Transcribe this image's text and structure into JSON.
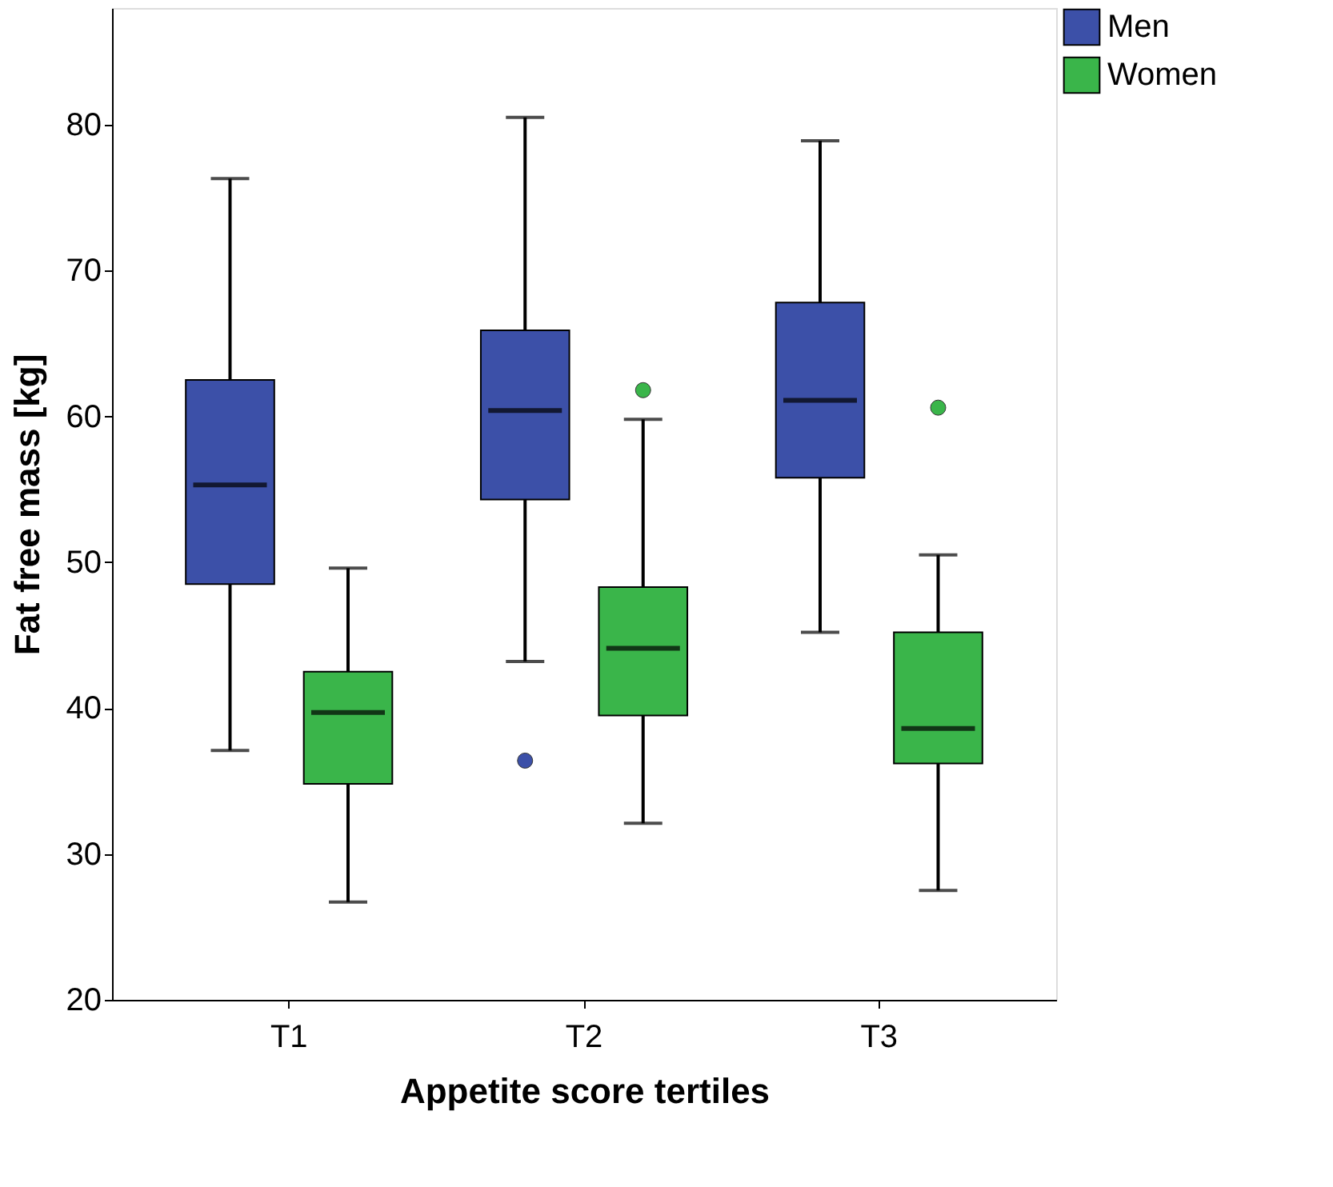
{
  "chart_data": {
    "type": "box",
    "xlabel": "Appetite score tertiles",
    "ylabel": "Fat free mass [kg]",
    "categories": [
      "T1",
      "T2",
      "T3"
    ],
    "ylim": [
      20,
      88
    ],
    "yticks": [
      20,
      30,
      40,
      50,
      60,
      70,
      80
    ],
    "grid": false,
    "legend": "top right",
    "series": [
      {
        "name": "Men",
        "color": "#3c50a8",
        "boxes": [
          {
            "low": 37.1,
            "q1": 48.5,
            "median": 55.3,
            "q3": 62.5,
            "high": 76.3
          },
          {
            "low": 43.2,
            "q1": 54.3,
            "median": 60.4,
            "q3": 65.9,
            "high": 80.5,
            "outliers": [
              36.4
            ]
          },
          {
            "low": 45.2,
            "q1": 55.8,
            "median": 61.1,
            "q3": 67.8,
            "high": 78.9
          }
        ]
      },
      {
        "name": "Women",
        "color": "#3ab54a",
        "boxes": [
          {
            "low": 26.7,
            "q1": 34.8,
            "median": 39.7,
            "q3": 42.5,
            "high": 49.6
          },
          {
            "low": 32.1,
            "q1": 39.5,
            "median": 44.1,
            "q3": 48.3,
            "high": 59.8,
            "outliers": [
              61.8
            ]
          },
          {
            "low": 27.5,
            "q1": 36.2,
            "median": 38.6,
            "q3": 45.2,
            "high": 50.5,
            "outliers": [
              60.6
            ]
          }
        ]
      }
    ]
  }
}
